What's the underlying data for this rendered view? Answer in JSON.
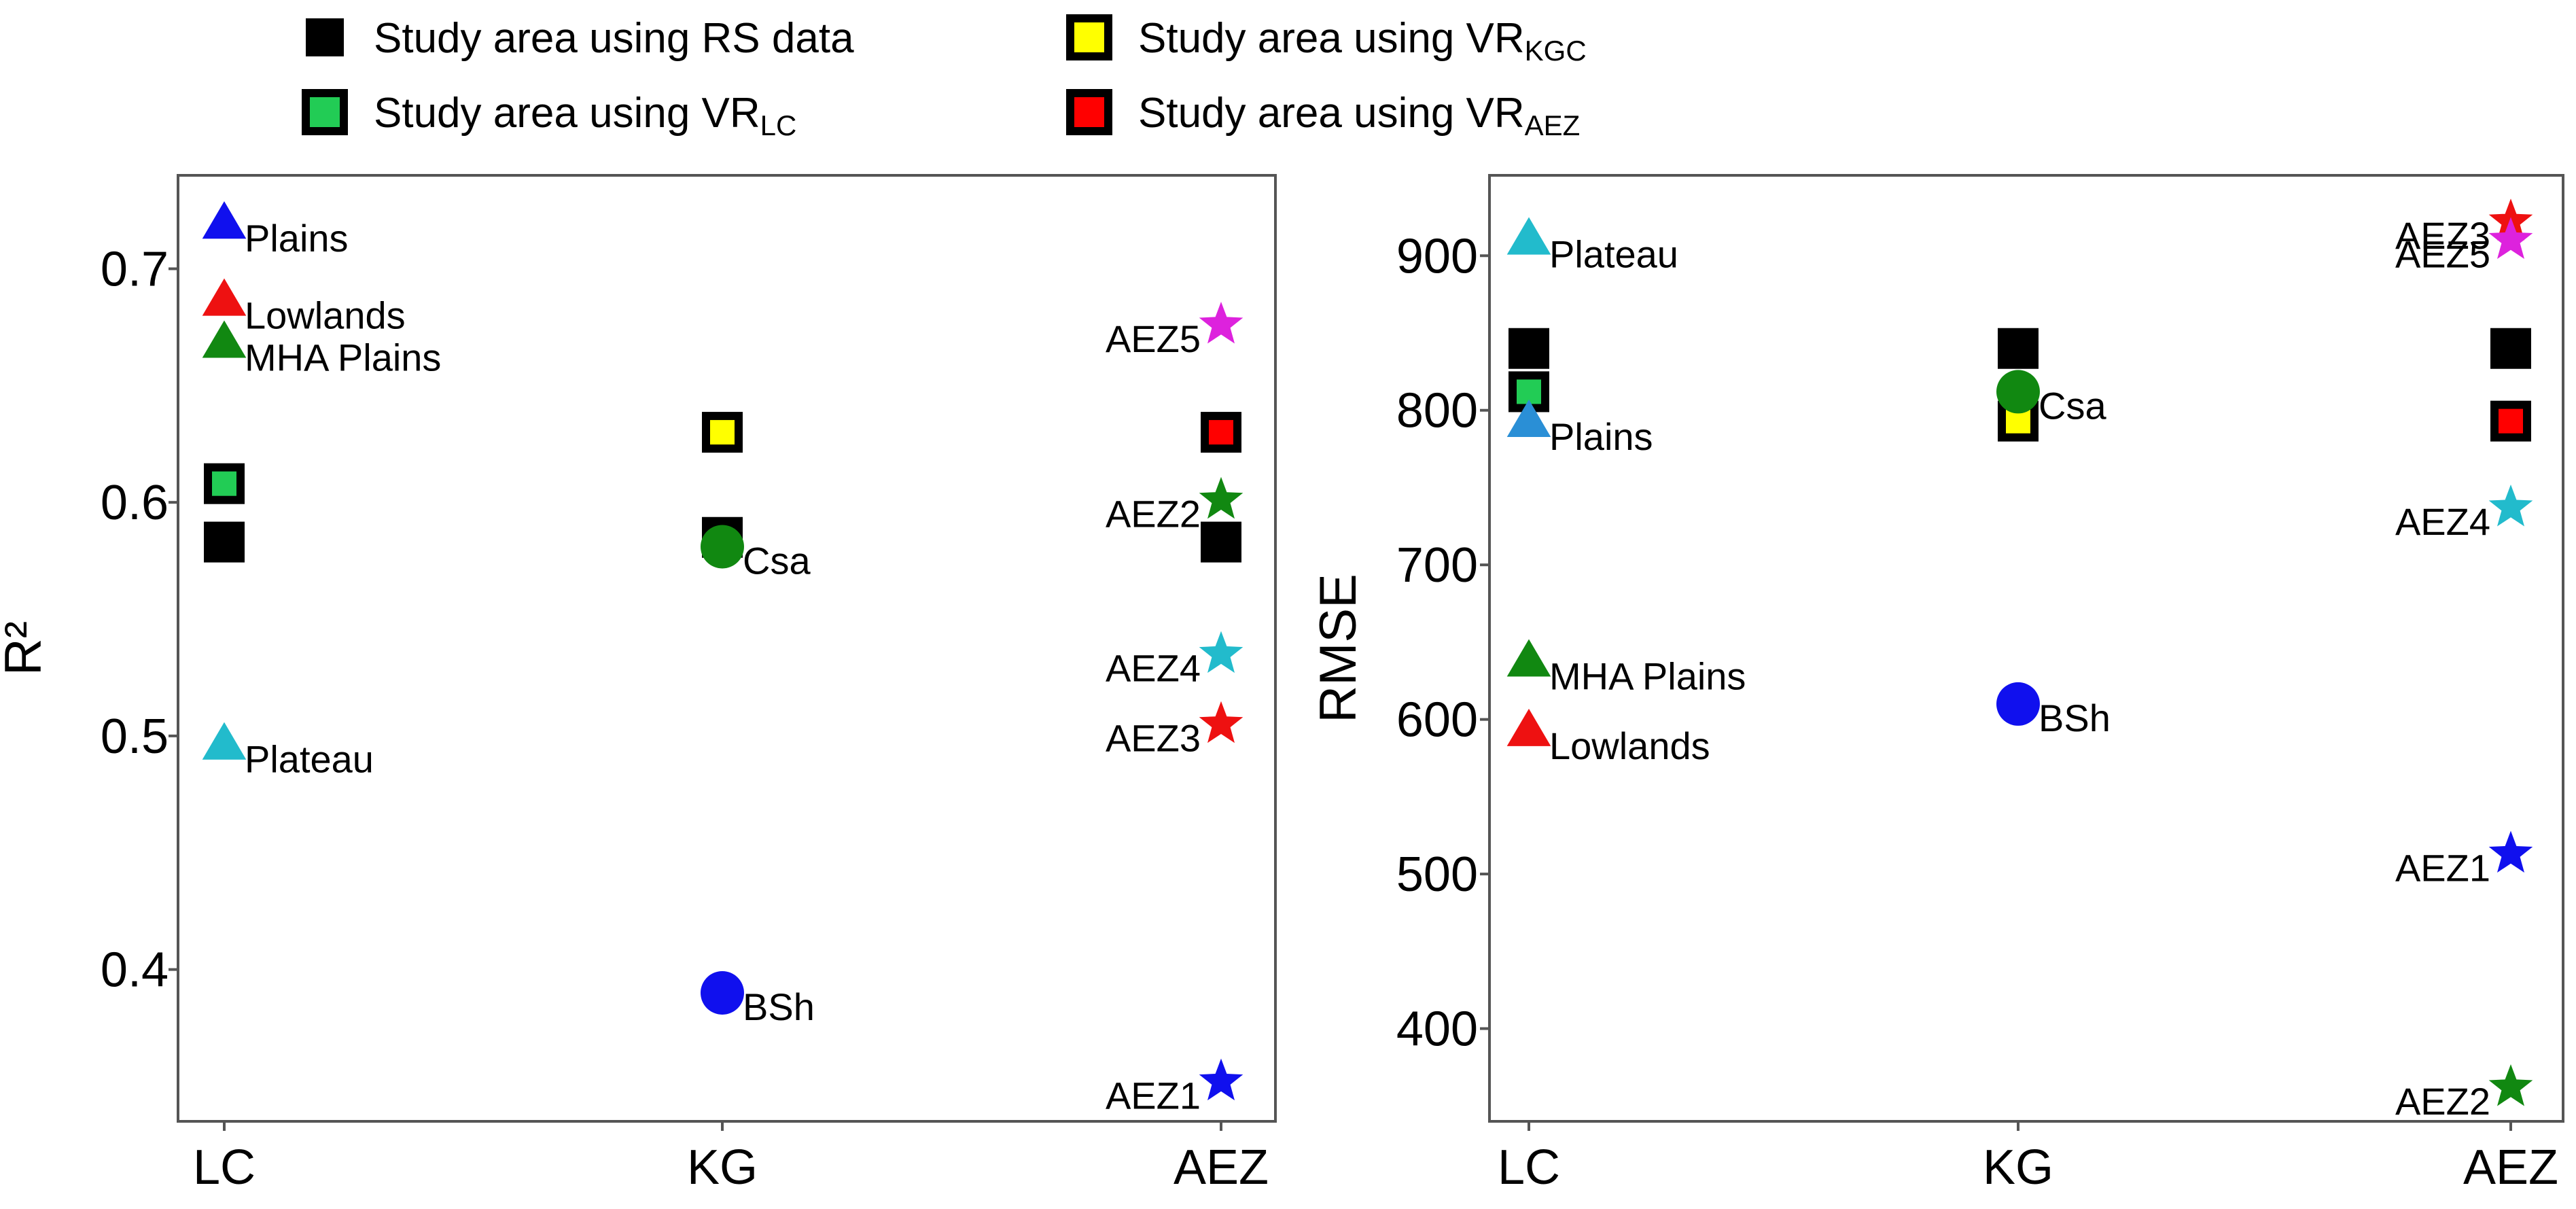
{
  "legend": {
    "items": [
      {
        "key": "rs",
        "text": "Study area using RS data",
        "sub": "",
        "fill": "#000000"
      },
      {
        "key": "kgc",
        "text": "Study area using VR",
        "sub": "KGC",
        "fill": "#ffff00"
      },
      {
        "key": "lc",
        "text": "Study area using VR",
        "sub": "LC",
        "fill": "#22cc55"
      },
      {
        "key": "aez",
        "text": "Study area using VR",
        "sub": "AEZ",
        "fill": "#ff0000"
      }
    ]
  },
  "colors": {
    "blue": "#1010ee",
    "red": "#ee1111",
    "green": "#118811",
    "cyan": "#22bbcc",
    "magenta": "#dd22dd",
    "skyblue": "#2a8fd6",
    "black": "#000000",
    "yellow": "#ffff00",
    "lightgreen": "#22cc55",
    "squarered": "#ff0000"
  },
  "chart_data": [
    {
      "type": "scatter",
      "id": "left",
      "ylabel": "R²",
      "xlabel": "",
      "categories": [
        "LC",
        "KG",
        "AEZ"
      ],
      "ylim": [
        0.335,
        0.74
      ],
      "yticks": [
        0.4,
        0.5,
        0.6,
        0.7
      ],
      "ytick_labels": [
        "0.4",
        "0.5",
        "0.6",
        "0.7"
      ],
      "squares": [
        {
          "category": "LC",
          "y": 0.583,
          "variant": "rs"
        },
        {
          "category": "LC",
          "y": 0.608,
          "variant": "lc"
        },
        {
          "category": "KG",
          "y": 0.585,
          "variant": "rs"
        },
        {
          "category": "KG",
          "y": 0.63,
          "variant": "kgc"
        },
        {
          "category": "AEZ",
          "y": 0.583,
          "variant": "rs"
        },
        {
          "category": "AEZ",
          "y": 0.63,
          "variant": "aez"
        }
      ],
      "points": [
        {
          "category": "LC",
          "y": 0.719,
          "marker": "triangle",
          "color": "blue",
          "label": "Plains",
          "anchor": "right"
        },
        {
          "category": "LC",
          "y": 0.686,
          "marker": "triangle",
          "color": "red",
          "label": "Lowlands",
          "anchor": "right"
        },
        {
          "category": "LC",
          "y": 0.668,
          "marker": "triangle",
          "color": "green",
          "label": "MHA Plains",
          "anchor": "right"
        },
        {
          "category": "LC",
          "y": 0.496,
          "marker": "triangle",
          "color": "cyan",
          "label": "Plateau",
          "anchor": "right"
        },
        {
          "category": "KG",
          "y": 0.581,
          "marker": "circle",
          "color": "green",
          "label": "Csa",
          "anchor": "right"
        },
        {
          "category": "KG",
          "y": 0.39,
          "marker": "circle",
          "color": "blue",
          "label": "BSh",
          "anchor": "right"
        },
        {
          "category": "AEZ",
          "y": 0.676,
          "marker": "star",
          "color": "magenta",
          "label": "AEZ5",
          "anchor": "left"
        },
        {
          "category": "AEZ",
          "y": 0.601,
          "marker": "star",
          "color": "green",
          "label": "AEZ2",
          "anchor": "left"
        },
        {
          "category": "AEZ",
          "y": 0.535,
          "marker": "star",
          "color": "cyan",
          "label": "AEZ4",
          "anchor": "left"
        },
        {
          "category": "AEZ",
          "y": 0.505,
          "marker": "star",
          "color": "red",
          "label": "AEZ3",
          "anchor": "left"
        },
        {
          "category": "AEZ",
          "y": 0.352,
          "marker": "star",
          "color": "blue",
          "label": "AEZ1",
          "anchor": "left"
        }
      ]
    },
    {
      "type": "scatter",
      "id": "right",
      "ylabel": "RMSE",
      "xlabel": "",
      "categories": [
        "LC",
        "KG",
        "AEZ"
      ],
      "ylim": [
        340,
        952
      ],
      "yticks": [
        400,
        500,
        600,
        700,
        800,
        900
      ],
      "ytick_labels": [
        "400",
        "500",
        "600",
        "700",
        "800",
        "900"
      ],
      "squares": [
        {
          "category": "LC",
          "y": 840,
          "variant": "rs"
        },
        {
          "category": "LC",
          "y": 812,
          "variant": "lc"
        },
        {
          "category": "KG",
          "y": 840,
          "variant": "rs"
        },
        {
          "category": "KG",
          "y": 793,
          "variant": "kgc"
        },
        {
          "category": "AEZ",
          "y": 840,
          "variant": "rs"
        },
        {
          "category": "AEZ",
          "y": 793,
          "variant": "aez"
        }
      ],
      "points": [
        {
          "category": "LC",
          "y": 910,
          "marker": "triangle",
          "color": "cyan",
          "label": "Plateau",
          "anchor": "right"
        },
        {
          "category": "LC",
          "y": 792,
          "marker": "triangle",
          "color": "skyblue",
          "label": "Plains",
          "anchor": "right"
        },
        {
          "category": "LC",
          "y": 637,
          "marker": "triangle",
          "color": "green",
          "label": "MHA Plains",
          "anchor": "right"
        },
        {
          "category": "LC",
          "y": 592,
          "marker": "triangle",
          "color": "red",
          "label": "Lowlands",
          "anchor": "right"
        },
        {
          "category": "KG",
          "y": 812,
          "marker": "circle",
          "color": "green",
          "label": "Csa",
          "anchor": "right"
        },
        {
          "category": "KG",
          "y": 610,
          "marker": "circle",
          "color": "blue",
          "label": "BSh",
          "anchor": "right"
        },
        {
          "category": "AEZ",
          "y": 922,
          "marker": "star",
          "color": "red",
          "label": "AEZ3",
          "anchor": "left"
        },
        {
          "category": "AEZ",
          "y": 910,
          "marker": "star",
          "color": "magenta",
          "label": "AEZ5",
          "anchor": "left"
        },
        {
          "category": "AEZ",
          "y": 737,
          "marker": "star",
          "color": "cyan",
          "label": "AEZ4",
          "anchor": "left"
        },
        {
          "category": "AEZ",
          "y": 513,
          "marker": "star",
          "color": "blue",
          "label": "AEZ1",
          "anchor": "left"
        },
        {
          "category": "AEZ",
          "y": 362,
          "marker": "star",
          "color": "green",
          "label": "AEZ2",
          "anchor": "left"
        }
      ]
    }
  ]
}
